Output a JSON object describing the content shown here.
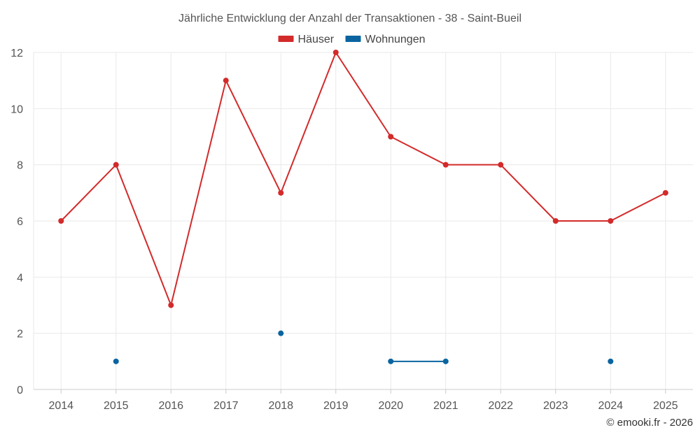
{
  "chart_data": {
    "type": "line",
    "title": "Jährliche Entwicklung der Anzahl der Transaktionen - 38 - Saint-Bueil",
    "categories": [
      "2014",
      "2015",
      "2016",
      "2017",
      "2018",
      "2019",
      "2020",
      "2021",
      "2022",
      "2023",
      "2024",
      "2025"
    ],
    "series": [
      {
        "name": "Häuser",
        "color": "#d32a2a",
        "values": [
          6,
          8,
          3,
          11,
          7,
          12,
          9,
          8,
          8,
          6,
          6,
          7
        ]
      },
      {
        "name": "Wohnungen",
        "color": "#0a64a0",
        "values": [
          null,
          1,
          null,
          null,
          2,
          null,
          1,
          1,
          null,
          null,
          1,
          null
        ]
      }
    ],
    "ylim": [
      0,
      12
    ],
    "yticks": [
      0,
      2,
      4,
      6,
      8,
      10,
      12
    ],
    "grid": true,
    "legend_position": "top-center",
    "xlabel": "",
    "ylabel": ""
  },
  "credit": "© emooki.fr - 2026"
}
